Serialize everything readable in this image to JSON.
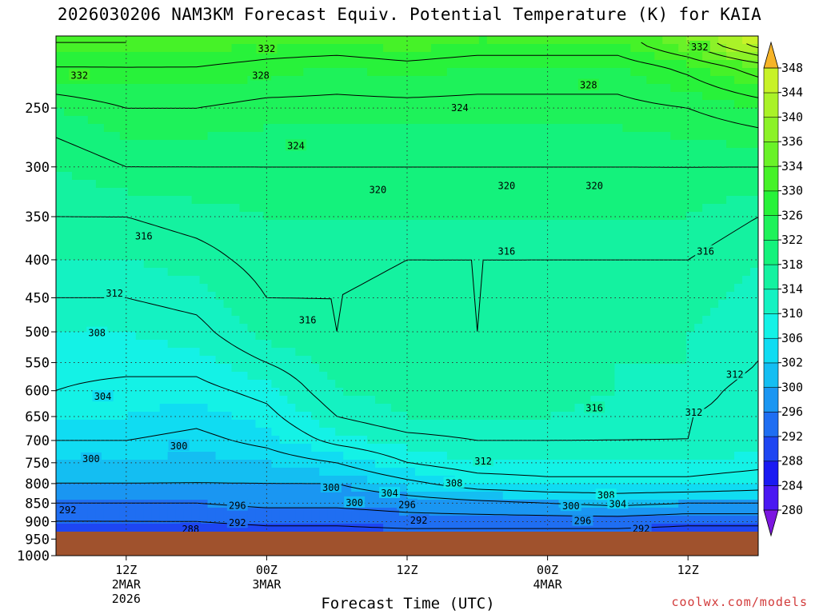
{
  "title": "2026030206  NAM3KM Forecast Equiv. Potential Temperature (K) for KAIA",
  "credit": "coolwx.com/models",
  "colors": {
    "ground": "#a0522d",
    "contour": "#000000",
    "grid": "#333333",
    "palette": [
      "#7c16e0",
      "#4a18f2",
      "#1a1af2",
      "#1e46f2",
      "#1f6ef2",
      "#1a96f2",
      "#14bef2",
      "#10dcf2",
      "#14f2e6",
      "#14f2c2",
      "#14f2a0",
      "#14f27c",
      "#1ef25a",
      "#28f23a",
      "#46f228",
      "#6af228",
      "#8cf228",
      "#aaf228",
      "#c8f228",
      "#e6f228",
      "#f6e628",
      "#f6d228",
      "#f6b428"
    ]
  },
  "chart_data": {
    "type": "heatmap",
    "title": "2026030206  NAM3KM Forecast Equiv. Potential Temperature (K) for KAIA",
    "xlabel": "Forecast Time (UTC)",
    "ylabel": "Pressure (hPa)",
    "yscale": "log",
    "ylim": [
      1000,
      200
    ],
    "xlim_hours": [
      0,
      60
    ],
    "yticks": [
      250,
      300,
      350,
      400,
      450,
      500,
      550,
      600,
      650,
      700,
      750,
      800,
      850,
      900,
      950,
      1000
    ],
    "xticks": [
      {
        "hour": 6,
        "label": "12Z",
        "sub": [
          "2MAR",
          "2026"
        ]
      },
      {
        "hour": 18,
        "label": "00Z",
        "sub": [
          "3MAR"
        ]
      },
      {
        "hour": 30,
        "label": "12Z",
        "sub": []
      },
      {
        "hour": 42,
        "label": "00Z",
        "sub": [
          "4MAR"
        ]
      },
      {
        "hour": 54,
        "label": "12Z",
        "sub": []
      }
    ],
    "colorbar_levels": [
      280,
      284,
      288,
      292,
      296,
      300,
      302,
      306,
      310,
      314,
      318,
      322,
      326,
      330,
      334,
      336,
      340,
      344,
      348
    ],
    "contour_interval": 4,
    "profiles": [
      {
        "hour": 0,
        "p": [
          960,
          900,
          850,
          800,
          750,
          700,
          650,
          600,
          550,
          500,
          450,
          400,
          350,
          300,
          250,
          220,
          205
        ],
        "t": [
          284,
          292,
          296,
          300,
          302,
          304,
          306,
          308,
          309,
          310,
          312,
          314,
          316,
          318,
          322,
          328,
          332
        ]
      },
      {
        "hour": 6,
        "p": [
          960,
          900,
          850,
          800,
          750,
          700,
          650,
          600,
          550,
          500,
          450,
          400,
          350,
          300,
          250,
          220,
          205
        ],
        "t": [
          285,
          292,
          296,
          300,
          302,
          304,
          306,
          307,
          309,
          310,
          312,
          314,
          316,
          320,
          324,
          328,
          332
        ]
      },
      {
        "hour": 12,
        "p": [
          960,
          900,
          850,
          800,
          750,
          700,
          650,
          600,
          550,
          500,
          450,
          400,
          350,
          300,
          250,
          220,
          205
        ],
        "t": [
          287,
          292,
          296,
          300,
          301,
          303,
          305,
          307,
          309,
          311,
          313,
          315,
          317,
          320,
          324,
          328,
          331
        ]
      },
      {
        "hour": 18,
        "p": [
          960,
          900,
          850,
          800,
          750,
          700,
          650,
          600,
          550,
          500,
          450,
          400,
          350,
          300,
          250,
          220,
          205
        ],
        "t": [
          288,
          293,
          297,
          300,
          302,
          305,
          307,
          309,
          312,
          315,
          316,
          317,
          318,
          320,
          323,
          327,
          330
        ]
      },
      {
        "hour": 24,
        "p": [
          960,
          900,
          850,
          800,
          750,
          700,
          650,
          600,
          550,
          500,
          450,
          400,
          350,
          300,
          250,
          220,
          205
        ],
        "t": [
          288,
          293,
          297,
          300,
          304,
          309,
          312,
          314,
          315,
          316,
          316,
          317,
          318,
          320,
          323,
          326,
          330
        ]
      },
      {
        "hour": 30,
        "p": [
          960,
          900,
          850,
          800,
          750,
          700,
          650,
          600,
          550,
          500,
          450,
          400,
          350,
          300,
          250,
          220,
          205
        ],
        "t": [
          288,
          294,
          298,
          303,
          308,
          311,
          314,
          315,
          315,
          315,
          315,
          316,
          318,
          320,
          323,
          327,
          331
        ]
      },
      {
        "hour": 36,
        "p": [
          960,
          900,
          850,
          800,
          750,
          700,
          650,
          600,
          550,
          500,
          450,
          400,
          350,
          300,
          250,
          220,
          205
        ],
        "t": [
          288,
          294,
          299,
          306,
          310,
          312,
          314,
          315,
          315,
          316,
          316,
          316,
          318,
          320,
          323,
          326,
          330
        ]
      },
      {
        "hour": 42,
        "p": [
          960,
          900,
          850,
          800,
          750,
          700,
          650,
          600,
          550,
          500,
          450,
          400,
          350,
          300,
          250,
          220,
          205
        ],
        "t": [
          288,
          294,
          300,
          307,
          310,
          312,
          314,
          315,
          315,
          315,
          315,
          316,
          318,
          320,
          323,
          326,
          330
        ]
      },
      {
        "hour": 48,
        "p": [
          960,
          900,
          850,
          800,
          750,
          700,
          650,
          600,
          550,
          500,
          450,
          400,
          350,
          300,
          250,
          220,
          205
        ],
        "t": [
          288,
          294,
          301,
          307,
          310,
          312,
          313,
          314,
          314,
          315,
          315,
          316,
          318,
          320,
          323,
          326,
          330
        ]
      },
      {
        "hour": 54,
        "p": [
          960,
          900,
          850,
          800,
          750,
          700,
          650,
          600,
          550,
          500,
          450,
          400,
          350,
          300,
          250,
          220,
          205
        ],
        "t": [
          288,
          293,
          300,
          307,
          310,
          312,
          312,
          313,
          314,
          314,
          315,
          316,
          318,
          320,
          324,
          329,
          336
        ]
      },
      {
        "hour": 60,
        "p": [
          960,
          900,
          850,
          800,
          750,
          700,
          650,
          600,
          550,
          500,
          450,
          400,
          350,
          300,
          250,
          220,
          205
        ],
        "t": [
          288,
          293,
          300,
          306,
          309,
          311,
          311,
          311,
          312,
          312,
          313,
          314,
          316,
          320,
          326,
          334,
          346
        ]
      }
    ],
    "contour_labels": [
      {
        "hour": 7.5,
        "p": 372,
        "v": "316"
      },
      {
        "hour": 2.0,
        "p": 226,
        "v": "332"
      },
      {
        "hour": 17.5,
        "p": 226,
        "v": "328"
      },
      {
        "hour": 20.5,
        "p": 281,
        "v": "324"
      },
      {
        "hour": 27.5,
        "p": 322,
        "v": "320"
      },
      {
        "hour": 5.0,
        "p": 444,
        "v": "312"
      },
      {
        "hour": 3.5,
        "p": 502,
        "v": "308"
      },
      {
        "hour": 4.0,
        "p": 611,
        "v": "304"
      },
      {
        "hour": 3.0,
        "p": 741,
        "v": "300"
      },
      {
        "hour": 10.5,
        "p": 712,
        "v": "300"
      },
      {
        "hour": 1.0,
        "p": 868,
        "v": "292"
      },
      {
        "hour": 15.5,
        "p": 857,
        "v": "296"
      },
      {
        "hour": 11.5,
        "p": 921,
        "v": "288"
      },
      {
        "hour": 15.5,
        "p": 904,
        "v": "292"
      },
      {
        "hour": 18.0,
        "p": 208,
        "v": "332"
      },
      {
        "hour": 34.5,
        "p": 250,
        "v": "324"
      },
      {
        "hour": 38.5,
        "p": 318,
        "v": "320"
      },
      {
        "hour": 55.0,
        "p": 207,
        "v": "332"
      },
      {
        "hour": 45.5,
        "p": 233,
        "v": "328"
      },
      {
        "hour": 46.0,
        "p": 318,
        "v": "320"
      },
      {
        "hour": 38.5,
        "p": 390,
        "v": "316"
      },
      {
        "hour": 55.5,
        "p": 390,
        "v": "316"
      },
      {
        "hour": 21.5,
        "p": 482,
        "v": "316"
      },
      {
        "hour": 46.0,
        "p": 633,
        "v": "316"
      },
      {
        "hour": 58.0,
        "p": 571,
        "v": "312"
      },
      {
        "hour": 36.5,
        "p": 747,
        "v": "312"
      },
      {
        "hour": 54.5,
        "p": 642,
        "v": "312"
      },
      {
        "hour": 34.0,
        "p": 799,
        "v": "308"
      },
      {
        "hour": 47.0,
        "p": 829,
        "v": "308"
      },
      {
        "hour": 28.5,
        "p": 824,
        "v": "304"
      },
      {
        "hour": 48.0,
        "p": 852,
        "v": "304"
      },
      {
        "hour": 23.5,
        "p": 810,
        "v": "300"
      },
      {
        "hour": 25.5,
        "p": 849,
        "v": "300"
      },
      {
        "hour": 44.0,
        "p": 858,
        "v": "300"
      },
      {
        "hour": 30.0,
        "p": 855,
        "v": "296"
      },
      {
        "hour": 45.0,
        "p": 898,
        "v": "296"
      },
      {
        "hour": 31.0,
        "p": 897,
        "v": "292"
      },
      {
        "hour": 50.0,
        "p": 920,
        "v": "292"
      },
      {
        "hour": 26.0,
        "p": 948,
        "v": "288"
      },
      {
        "hour": 47.5,
        "p": 960,
        "v": "288"
      }
    ]
  }
}
